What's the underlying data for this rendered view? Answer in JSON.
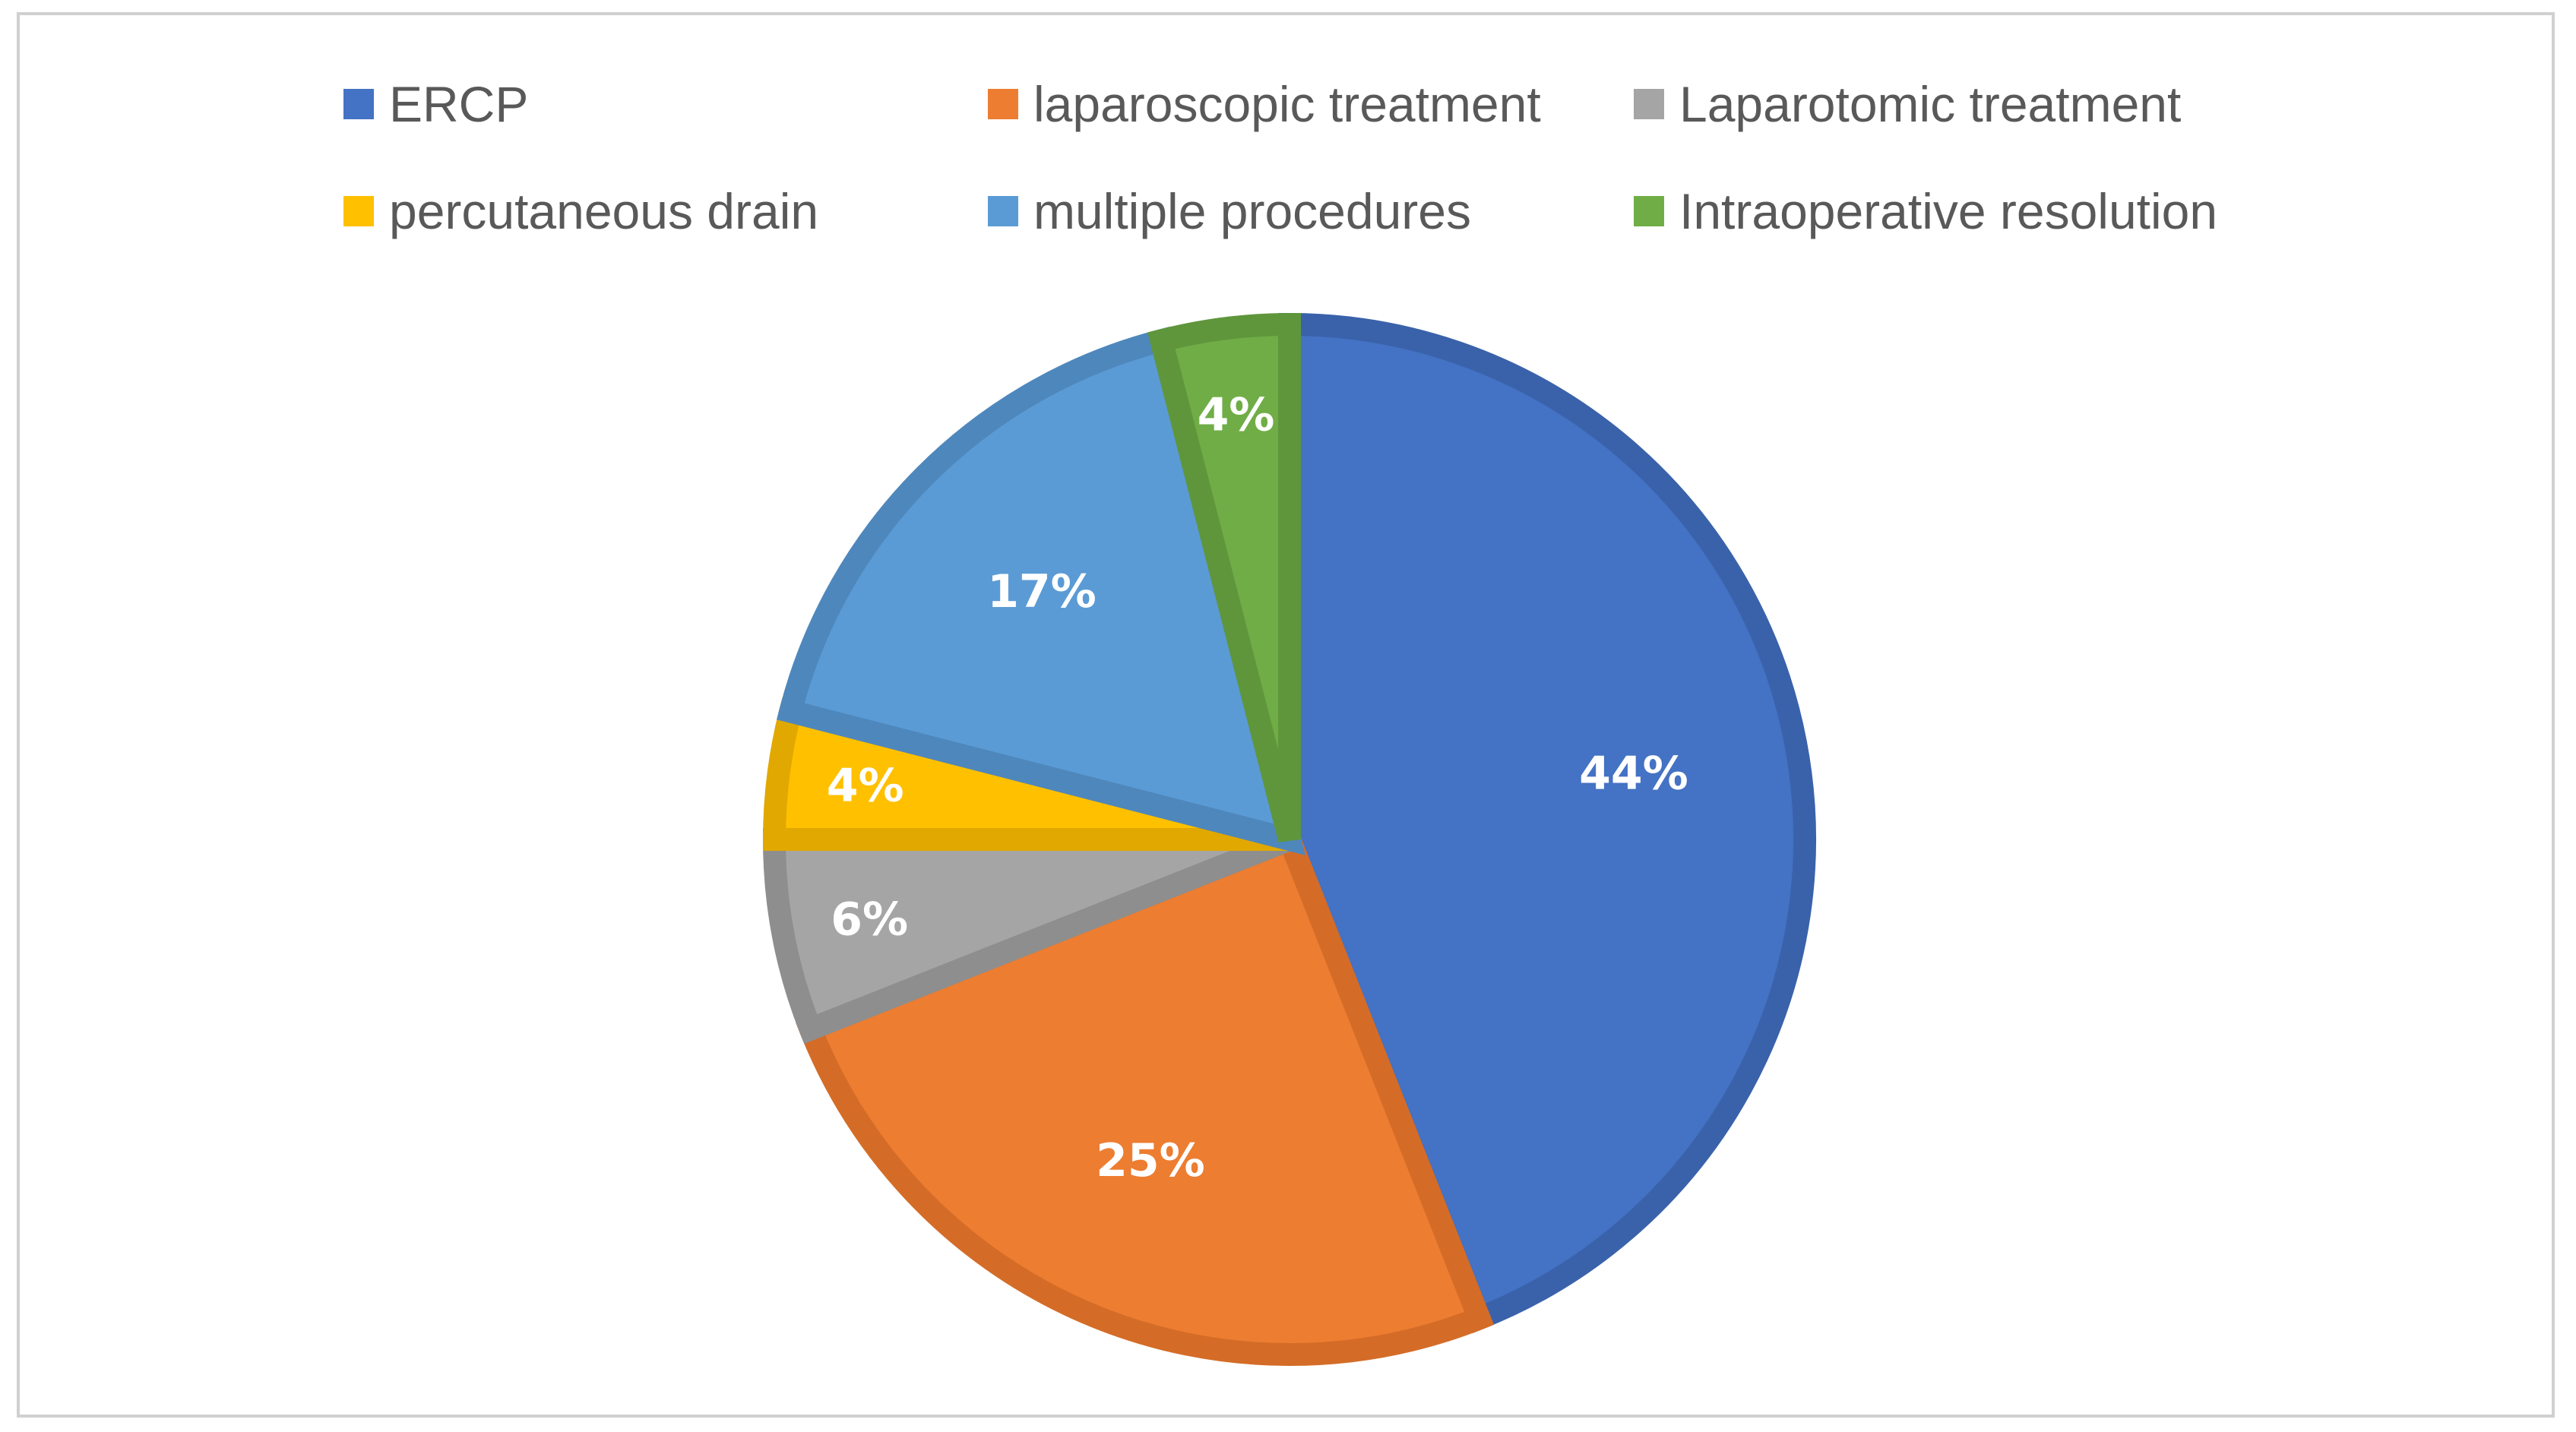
{
  "chart_data": {
    "type": "pie",
    "title": "",
    "legend_position": "top",
    "categories": [
      "ERCP",
      "laparoscopic treatment",
      "Laparotomic treatment",
      "percutaneous drain",
      "multiple procedures",
      "Intraoperative resolution"
    ],
    "values": [
      44,
      25,
      6,
      4,
      17,
      4
    ],
    "labels": [
      "44%",
      "25%",
      "6%",
      "4%",
      "17%",
      "4%"
    ],
    "colors": [
      "#4472C4",
      "#ED7D31",
      "#A5A5A5",
      "#FFC000",
      "#5B9BD5",
      "#70AD47"
    ],
    "border_colors": [
      "#3A62AA",
      "#D46C27",
      "#8E8E8E",
      "#E0A800",
      "#4E87BC",
      "#5F963C"
    ]
  }
}
